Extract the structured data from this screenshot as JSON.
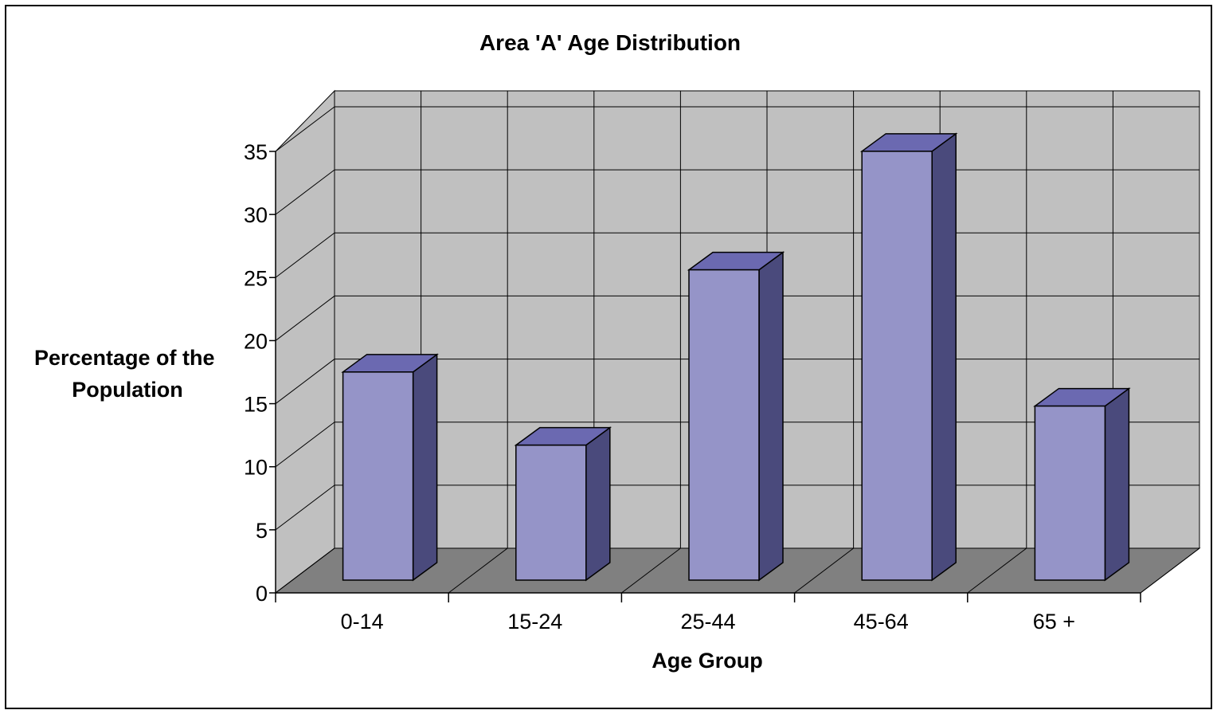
{
  "chart_data": {
    "type": "bar",
    "title": "Area 'A' Age Distribution",
    "xlabel": "Age Group",
    "ylabel_lines": [
      "Percentage of the",
      "Population"
    ],
    "categories": [
      "0-14",
      "15-24",
      "25-44",
      "45-64",
      "65 +"
    ],
    "values": [
      16.5,
      10.7,
      24.6,
      34,
      13.8
    ],
    "ylim": [
      0,
      35
    ],
    "yticks": [
      "0",
      "5",
      "10",
      "15",
      "20",
      "25",
      "30",
      "35"
    ],
    "grid": true,
    "legend": "none",
    "colors": {
      "bar_front": "#9594C8",
      "bar_top": "#6B69B1",
      "bar_side": "#4A4A7C",
      "back_wall": "#C0C0C0",
      "floor": "#808080"
    }
  }
}
